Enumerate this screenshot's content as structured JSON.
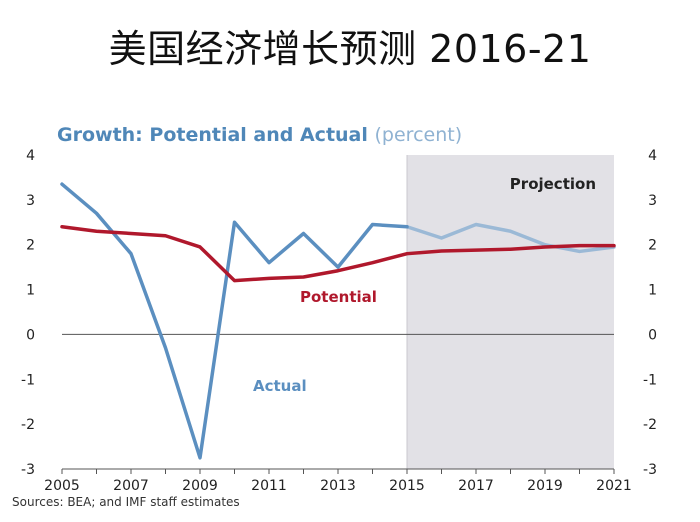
{
  "slide": {
    "title": "美国经济增长预测 2016-21",
    "source": "Sources: BEA; and IMF staff estimates"
  },
  "chart_data": {
    "type": "line",
    "title": "Growth:  Potential  and  Actual",
    "unit_label": "(percent)",
    "x": [
      2005,
      2006,
      2007,
      2008,
      2009,
      2010,
      2011,
      2012,
      2013,
      2014,
      2015,
      2016,
      2017,
      2018,
      2019,
      2020,
      2021
    ],
    "x_ticks": [
      2005,
      2007,
      2009,
      2011,
      2013,
      2015,
      2017,
      2019,
      2021
    ],
    "ylim": [
      -3,
      4
    ],
    "y_ticks": [
      4,
      3,
      2,
      1,
      0,
      -1,
      -2,
      -3
    ],
    "projection_start": 2015,
    "projection_end": 2021,
    "projection_label": "Projection",
    "series": [
      {
        "name": "Actual",
        "color": "#5b8fc0",
        "projection_color": "#9bb9d6",
        "values": [
          3.35,
          2.7,
          1.8,
          -0.3,
          -2.75,
          2.5,
          1.6,
          2.25,
          1.5,
          2.45,
          2.4,
          2.15,
          2.45,
          2.3,
          2.0,
          1.85,
          1.95
        ]
      },
      {
        "name": "Potential",
        "color": "#b0182c",
        "values": [
          2.4,
          2.3,
          2.25,
          2.2,
          1.95,
          1.2,
          1.25,
          1.28,
          1.42,
          1.6,
          1.8,
          1.86,
          1.88,
          1.9,
          1.95,
          1.98,
          1.98
        ]
      }
    ]
  }
}
